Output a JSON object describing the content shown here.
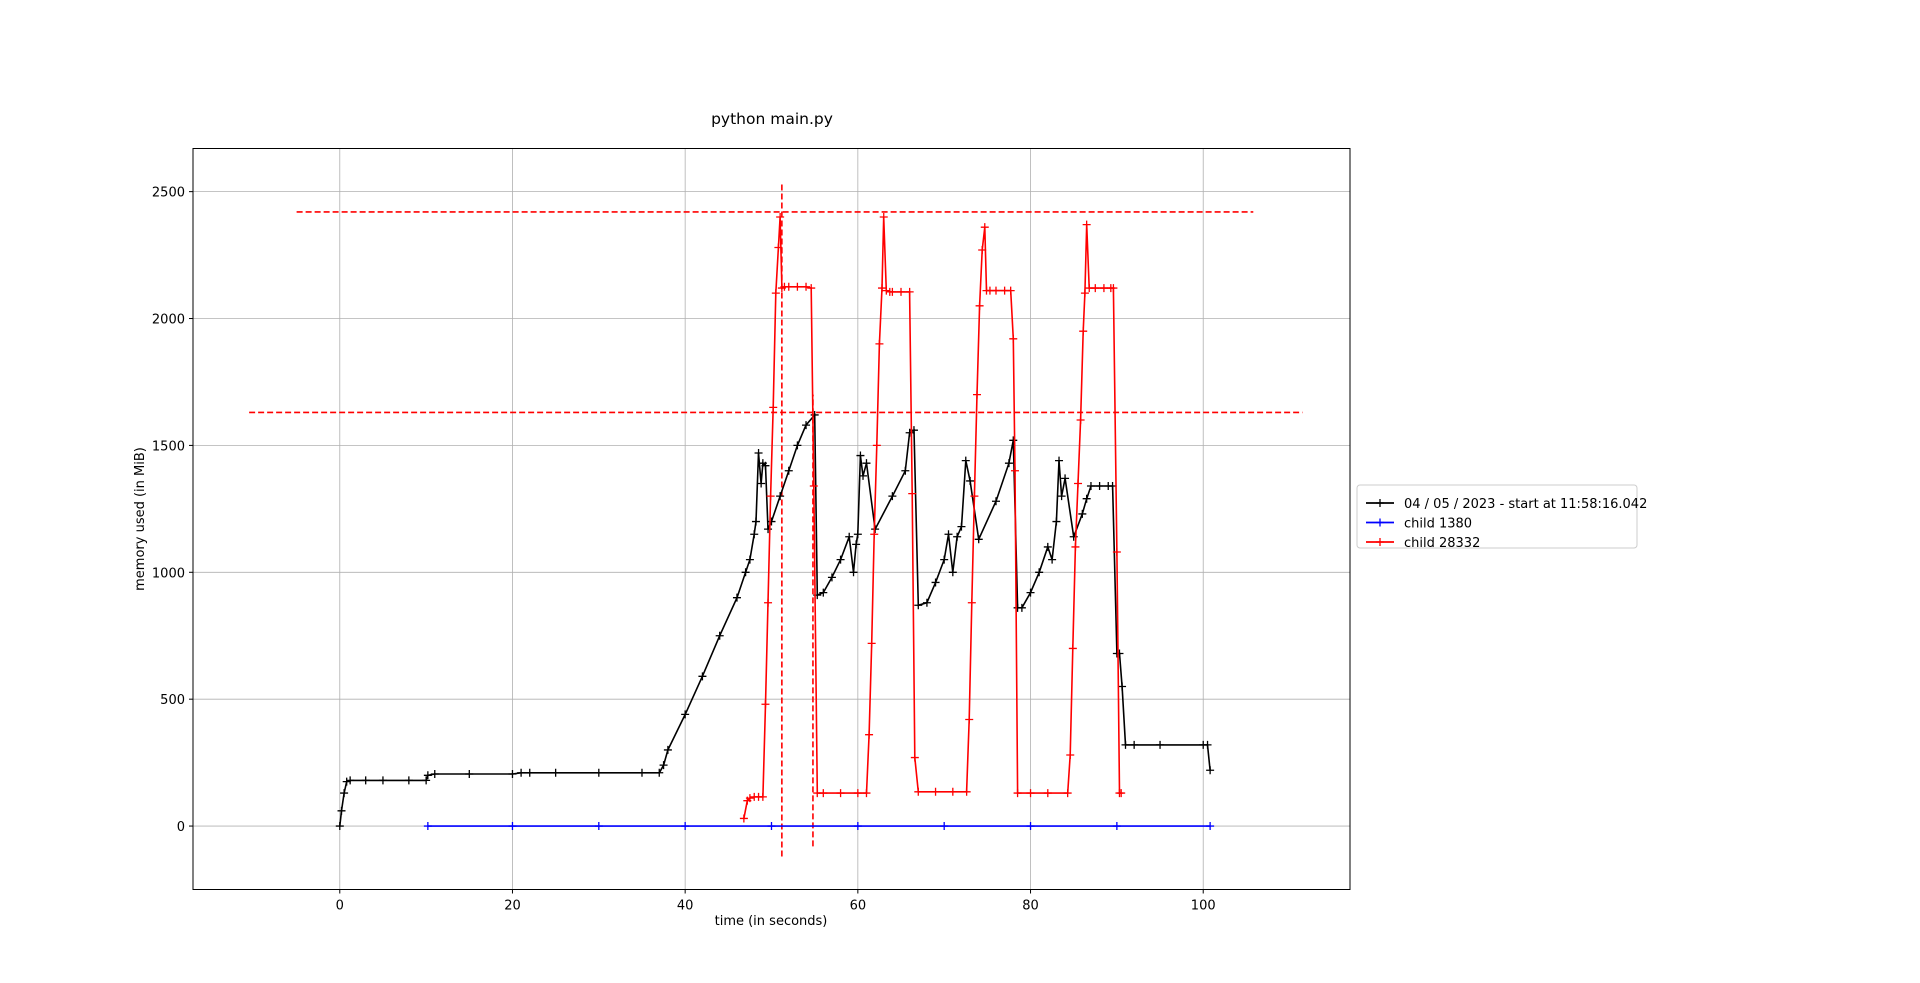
{
  "chart_data": {
    "type": "line",
    "title": "python main.py",
    "xlabel": "time (in seconds)",
    "ylabel": "memory used (in MiB)",
    "xlim": [
      -17,
      117
    ],
    "ylim": [
      -250,
      2670
    ],
    "x_ticks": [
      0,
      20,
      40,
      60,
      80,
      100
    ],
    "y_ticks": [
      0,
      500,
      1000,
      1500,
      2000,
      2500
    ],
    "grid": true,
    "legend_position": "right",
    "series": [
      {
        "name": "04 / 05 / 2023 - start at 11:58:16.042",
        "color": "#000000",
        "marker": "+",
        "x": [
          0,
          0.2,
          0.5,
          0.8,
          1.2,
          3,
          5,
          8,
          10,
          10.2,
          11,
          15,
          20,
          21,
          22,
          25,
          30,
          35,
          37,
          37.5,
          38,
          40,
          42,
          44,
          46,
          47,
          47.5,
          48,
          48.2,
          48.5,
          48.8,
          49,
          49.3,
          49.6,
          50,
          51,
          52,
          53,
          54,
          55,
          55.3,
          56,
          57,
          58,
          59,
          59.5,
          59.8,
          60,
          60.3,
          60.6,
          61,
          62,
          64,
          65.5,
          66,
          66.5,
          67,
          68,
          69,
          70,
          70.5,
          71,
          71.5,
          72,
          72.5,
          73,
          74,
          76,
          77.5,
          78,
          78.5,
          79,
          80,
          81,
          82,
          82.5,
          83,
          83.3,
          83.6,
          84,
          85,
          86,
          86.5,
          87,
          88,
          89,
          89.5,
          90,
          90.3,
          90.6,
          91,
          92,
          95,
          100,
          100.5,
          100.8
        ],
        "y": [
          0,
          60,
          130,
          175,
          180,
          180,
          180,
          180,
          180,
          200,
          205,
          205,
          205,
          210,
          210,
          210,
          210,
          210,
          210,
          240,
          300,
          440,
          590,
          750,
          900,
          1000,
          1050,
          1150,
          1200,
          1470,
          1350,
          1430,
          1420,
          1170,
          1200,
          1300,
          1400,
          1500,
          1580,
          1620,
          910,
          920,
          980,
          1050,
          1140,
          1000,
          1110,
          1150,
          1460,
          1380,
          1430,
          1170,
          1300,
          1400,
          1550,
          1560,
          870,
          880,
          960,
          1050,
          1150,
          1000,
          1140,
          1180,
          1440,
          1360,
          1130,
          1280,
          1430,
          1520,
          860,
          860,
          920,
          1000,
          1100,
          1050,
          1200,
          1440,
          1300,
          1370,
          1140,
          1230,
          1290,
          1340,
          1340,
          1340,
          1340,
          680,
          680,
          550,
          320,
          320,
          320,
          320,
          320,
          220
        ]
      },
      {
        "name": "child 1380",
        "color": "#0000ff",
        "marker": "+",
        "x": [
          10.2,
          20,
          30,
          40,
          50,
          60,
          70,
          80,
          90,
          100.8
        ],
        "y": [
          0,
          0,
          0,
          0,
          0,
          0,
          0,
          0,
          0,
          0
        ]
      },
      {
        "name": "child 28332",
        "color": "#ff0000",
        "marker": "+",
        "x": [
          46.8,
          47.2,
          47.5,
          48,
          48.5,
          49,
          49.3,
          49.6,
          49.9,
          50.2,
          50.5,
          50.8,
          51,
          51.2,
          51.5,
          52,
          53,
          54,
          54.6,
          54.9,
          55.3,
          56,
          58,
          60,
          61,
          61.3,
          61.6,
          61.9,
          62.2,
          62.5,
          62.8,
          63,
          63.3,
          63.7,
          64,
          65,
          66,
          66.3,
          66.6,
          67,
          69,
          71,
          72.6,
          72.9,
          73.2,
          73.5,
          73.8,
          74.1,
          74.4,
          74.7,
          74.9,
          75.3,
          76,
          77,
          77.7,
          78,
          78.2,
          78.5,
          80,
          82,
          84.3,
          84.6,
          84.9,
          85.2,
          85.5,
          85.8,
          86.1,
          86.3,
          86.5,
          86.8,
          87.5,
          88.5,
          89.3,
          89.6,
          90,
          90.3,
          90.5
        ],
        "y": [
          30,
          100,
          110,
          115,
          115,
          115,
          480,
          880,
          1300,
          1650,
          2100,
          2280,
          2400,
          2120,
          2125,
          2125,
          2125,
          2125,
          2120,
          1340,
          130,
          130,
          130,
          130,
          130,
          360,
          720,
          1150,
          1500,
          1900,
          2120,
          2400,
          2110,
          2105,
          2105,
          2105,
          2105,
          1310,
          270,
          135,
          135,
          135,
          135,
          420,
          880,
          1300,
          1700,
          2050,
          2270,
          2360,
          2110,
          2110,
          2110,
          2110,
          2110,
          1920,
          1400,
          130,
          130,
          130,
          130,
          280,
          700,
          1100,
          1350,
          1600,
          1950,
          2100,
          2370,
          2120,
          2120,
          2120,
          2120,
          2120,
          1080,
          130,
          130
        ]
      }
    ],
    "threshold_lines": {
      "horizontal": [
        {
          "y": 2420,
          "x_from": -5,
          "x_to": 105.8
        },
        {
          "y": 1630,
          "x_from": -10.5,
          "x_to": 111.5
        }
      ],
      "vertical": [
        {
          "x": 51.2,
          "y_from": -120,
          "y_to": 2540
        },
        {
          "x": 54.8,
          "y_from": -80,
          "y_to": 1700
        }
      ],
      "color": "#ff0000"
    }
  }
}
